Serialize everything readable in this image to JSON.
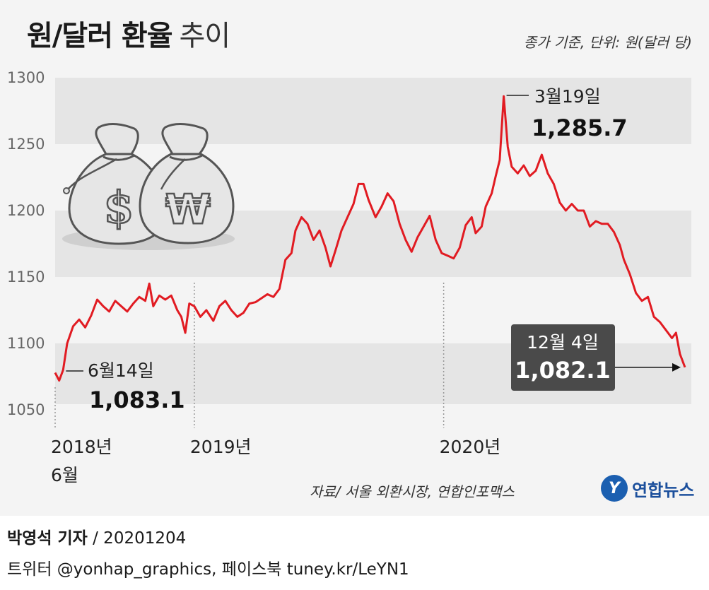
{
  "header": {
    "title_bold": "원/달러 환율",
    "title_light": "추이",
    "unit_note": "종가 기준, 단위: 원(달러 당)"
  },
  "footer": {
    "source": "자료/ 서울 외환시장, 연합인포맥스",
    "logo_text": "연합뉴스",
    "reporter": "박영석 기자",
    "date": "/  20201204",
    "social": "트위터 @yonhap_graphics, 페이스북 tuney.kr/LeYN1"
  },
  "icons": [
    "dollar-money-bag-icon",
    "won-money-bag-icon"
  ],
  "colors": {
    "line": "#e11b22",
    "band": "#e5e5e5",
    "callout_box": "#4a4a4a"
  },
  "chart_data": {
    "type": "line",
    "title": "원/달러 환율 추이",
    "ylim": [
      1050,
      1300
    ],
    "yticks": [
      "1300",
      "1250",
      "1200",
      "1150",
      "1100",
      "1050"
    ],
    "ytick_values": [
      1300,
      1250,
      1200,
      1150,
      1100,
      1050
    ],
    "xticks": [
      {
        "label": "2018년\n6월",
        "x": 0
      },
      {
        "label": "2019년",
        "x": 139
      },
      {
        "label": "2020년",
        "x": 388
      }
    ],
    "grid": "alternating horizontal bands",
    "series": [
      {
        "values": [
          [
            0,
            1078
          ],
          [
            4,
            1072
          ],
          [
            8,
            1080
          ],
          [
            12,
            1100
          ],
          [
            18,
            1113
          ],
          [
            24,
            1118
          ],
          [
            30,
            1112
          ],
          [
            36,
            1121
          ],
          [
            42,
            1133
          ],
          [
            48,
            1128
          ],
          [
            54,
            1124
          ],
          [
            60,
            1132
          ],
          [
            66,
            1128
          ],
          [
            72,
            1124
          ],
          [
            78,
            1130
          ],
          [
            84,
            1135
          ],
          [
            90,
            1132
          ],
          [
            94,
            1145
          ],
          [
            98,
            1128
          ],
          [
            104,
            1136
          ],
          [
            110,
            1133
          ],
          [
            116,
            1136
          ],
          [
            122,
            1125
          ],
          [
            126,
            1120
          ],
          [
            130,
            1108
          ],
          [
            134,
            1130
          ],
          [
            139,
            1128
          ],
          [
            145,
            1120
          ],
          [
            151,
            1125
          ],
          [
            158,
            1117
          ],
          [
            164,
            1128
          ],
          [
            170,
            1132
          ],
          [
            176,
            1125
          ],
          [
            182,
            1120
          ],
          [
            188,
            1123
          ],
          [
            194,
            1130
          ],
          [
            200,
            1131
          ],
          [
            206,
            1134
          ],
          [
            212,
            1137
          ],
          [
            218,
            1135
          ],
          [
            224,
            1141
          ],
          [
            230,
            1163
          ],
          [
            236,
            1168
          ],
          [
            240,
            1185
          ],
          [
            246,
            1195
          ],
          [
            252,
            1190
          ],
          [
            258,
            1178
          ],
          [
            264,
            1185
          ],
          [
            270,
            1172
          ],
          [
            275,
            1158
          ],
          [
            280,
            1170
          ],
          [
            286,
            1185
          ],
          [
            292,
            1195
          ],
          [
            298,
            1205
          ],
          [
            303,
            1220
          ],
          [
            308,
            1220
          ],
          [
            313,
            1208
          ],
          [
            320,
            1195
          ],
          [
            326,
            1203
          ],
          [
            332,
            1213
          ],
          [
            338,
            1207
          ],
          [
            344,
            1190
          ],
          [
            350,
            1178
          ],
          [
            356,
            1169
          ],
          [
            362,
            1180
          ],
          [
            368,
            1188
          ],
          [
            374,
            1196
          ],
          [
            380,
            1178
          ],
          [
            386,
            1168
          ],
          [
            392,
            1166
          ],
          [
            398,
            1164
          ],
          [
            404,
            1172
          ],
          [
            410,
            1189
          ],
          [
            416,
            1195
          ],
          [
            420,
            1183
          ],
          [
            426,
            1188
          ],
          [
            430,
            1203
          ],
          [
            436,
            1213
          ],
          [
            440,
            1226
          ],
          [
            444,
            1238
          ],
          [
            448,
            1286
          ],
          [
            452,
            1248
          ],
          [
            456,
            1233
          ],
          [
            462,
            1228
          ],
          [
            468,
            1234
          ],
          [
            474,
            1226
          ],
          [
            480,
            1230
          ],
          [
            486,
            1242
          ],
          [
            492,
            1228
          ],
          [
            498,
            1220
          ],
          [
            504,
            1206
          ],
          [
            510,
            1200
          ],
          [
            516,
            1205
          ],
          [
            522,
            1200
          ],
          [
            528,
            1200
          ],
          [
            534,
            1188
          ],
          [
            540,
            1192
          ],
          [
            546,
            1190
          ],
          [
            552,
            1190
          ],
          [
            558,
            1184
          ],
          [
            564,
            1174
          ],
          [
            568,
            1163
          ],
          [
            574,
            1152
          ],
          [
            580,
            1138
          ],
          [
            586,
            1132
          ],
          [
            592,
            1135
          ],
          [
            598,
            1120
          ],
          [
            604,
            1116
          ],
          [
            610,
            1110
          ],
          [
            616,
            1104
          ],
          [
            620,
            1108
          ],
          [
            624,
            1092
          ],
          [
            629,
            1082
          ]
        ]
      }
    ],
    "annotations": [
      {
        "date": "6월14일",
        "value": "1,083.1"
      },
      {
        "date": "3월19일",
        "value": "1,285.7"
      },
      {
        "date": "12월 4일",
        "value": "1,082.1"
      }
    ]
  }
}
